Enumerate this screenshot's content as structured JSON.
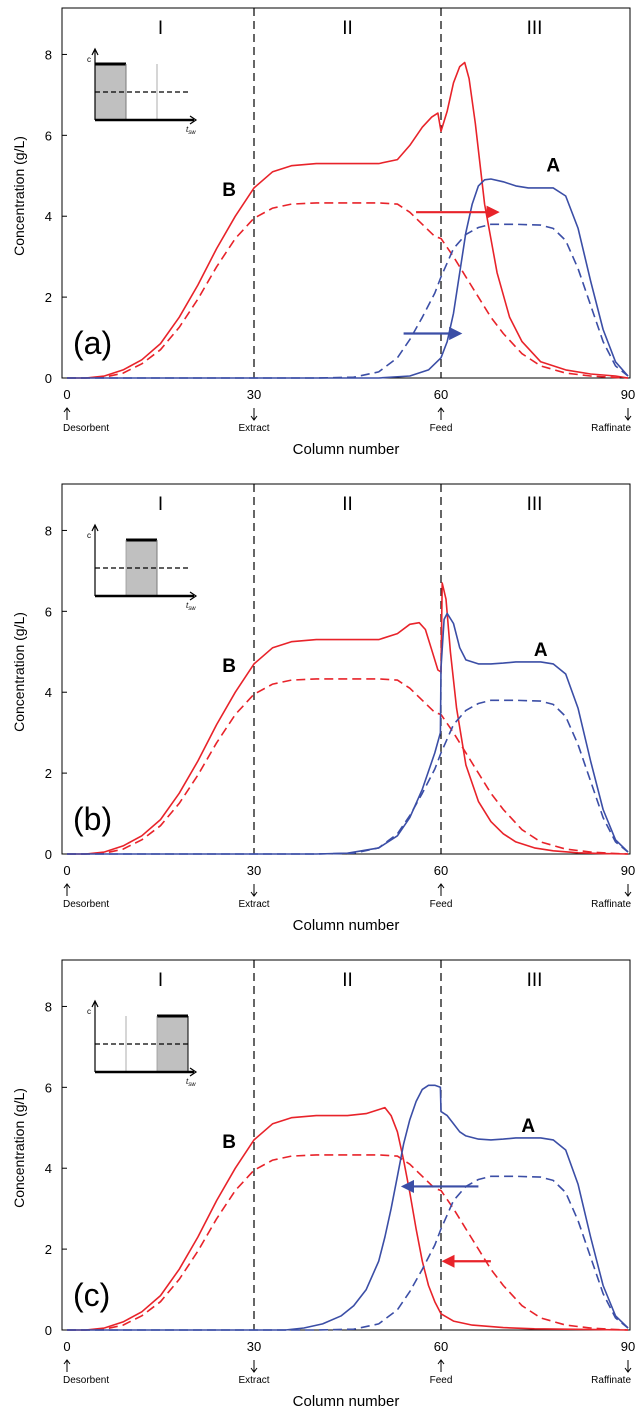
{
  "figure": {
    "x_axis_label": "Column number",
    "y_axis_label": "Concentration (g/L)",
    "position_labels": [
      "Desorbent",
      "Extract",
      "Feed",
      "Raffinate"
    ],
    "zone_labels": [
      "I",
      "II",
      "III"
    ],
    "inset_axis_labels": {
      "y": "c",
      "x": "t",
      "x_subscript": "sw"
    },
    "colors": {
      "species_B": "#e8232a",
      "species_A": "#3b4ea6",
      "zone_line": "#000000"
    }
  },
  "chart_data": [
    {
      "type": "line",
      "panel_label": "(a)",
      "xlim": [
        0,
        90
      ],
      "ylim": [
        0,
        9
      ],
      "x_ticks": [
        0,
        30,
        60,
        90
      ],
      "y_ticks": [
        0,
        2,
        4,
        6,
        8
      ],
      "zone_boundaries": [
        30,
        60
      ],
      "species_labels": [
        {
          "text": "B",
          "x": 26,
          "y": 4.5
        },
        {
          "text": "A",
          "x": 78,
          "y": 5.1
        }
      ],
      "arrows": [
        {
          "color": "#e8232a",
          "from": [
            56,
            4.1
          ],
          "to": [
            69,
            4.1
          ]
        },
        {
          "color": "#3b4ea6",
          "from": [
            54,
            1.1
          ],
          "to": [
            63,
            1.1
          ]
        }
      ],
      "inset_pulse_segment": 1,
      "series": [
        {
          "color": "#e8232a",
          "style": "solid",
          "x": [
            0,
            3,
            6,
            9,
            12,
            15,
            18,
            21,
            24,
            27,
            30,
            33,
            36,
            40,
            45,
            50,
            53,
            55,
            57,
            58.5,
            59.5,
            60,
            61,
            62,
            63,
            63.8,
            64.5,
            65.5,
            67,
            69,
            71,
            73,
            76,
            80,
            84,
            88,
            90
          ],
          "y": [
            0,
            0,
            0.05,
            0.2,
            0.45,
            0.85,
            1.5,
            2.3,
            3.2,
            4.0,
            4.7,
            5.1,
            5.25,
            5.3,
            5.3,
            5.3,
            5.4,
            5.75,
            6.2,
            6.45,
            6.55,
            6.1,
            6.6,
            7.3,
            7.7,
            7.8,
            7.4,
            6.3,
            4.3,
            2.6,
            1.5,
            0.9,
            0.4,
            0.2,
            0.1,
            0.05,
            0
          ]
        },
        {
          "color": "#e8232a",
          "style": "dashed",
          "x": [
            0,
            3,
            6,
            9,
            12,
            15,
            18,
            21,
            24,
            27,
            30,
            33,
            36,
            40,
            45,
            50,
            53,
            55,
            57,
            59,
            60,
            62,
            64,
            66,
            68,
            70,
            73,
            76,
            80,
            84,
            87,
            90
          ],
          "y": [
            0,
            0,
            0.02,
            0.12,
            0.35,
            0.7,
            1.25,
            1.95,
            2.75,
            3.45,
            3.95,
            4.2,
            4.3,
            4.33,
            4.33,
            4.33,
            4.3,
            4.1,
            3.8,
            3.5,
            3.45,
            3.0,
            2.5,
            2.0,
            1.5,
            1.1,
            0.6,
            0.3,
            0.12,
            0.05,
            0.02,
            0
          ]
        },
        {
          "color": "#3b4ea6",
          "style": "solid",
          "x": [
            0,
            40,
            50,
            55,
            58,
            60,
            61,
            62,
            63,
            64,
            65,
            66,
            67,
            68,
            70,
            72,
            74,
            76,
            78,
            80,
            82,
            84,
            86,
            88,
            90
          ],
          "y": [
            0,
            0,
            0,
            0.05,
            0.2,
            0.5,
            0.9,
            1.6,
            2.6,
            3.6,
            4.3,
            4.75,
            4.9,
            4.92,
            4.85,
            4.75,
            4.7,
            4.7,
            4.7,
            4.5,
            3.7,
            2.4,
            1.2,
            0.4,
            0.05
          ]
        },
        {
          "color": "#3b4ea6",
          "style": "dashed",
          "x": [
            0,
            40,
            46,
            50,
            53,
            55,
            57,
            59,
            60,
            62,
            64,
            66,
            68,
            72,
            76,
            78,
            80,
            82,
            84,
            86,
            88,
            90
          ],
          "y": [
            0,
            0,
            0.02,
            0.15,
            0.5,
            0.95,
            1.5,
            2.1,
            2.5,
            3.2,
            3.55,
            3.72,
            3.8,
            3.8,
            3.78,
            3.7,
            3.4,
            2.7,
            1.8,
            0.9,
            0.3,
            0.05
          ]
        }
      ]
    },
    {
      "type": "line",
      "panel_label": "(b)",
      "xlim": [
        0,
        90
      ],
      "ylim": [
        0,
        9
      ],
      "x_ticks": [
        0,
        30,
        60,
        90
      ],
      "y_ticks": [
        0,
        2,
        4,
        6,
        8
      ],
      "zone_boundaries": [
        30,
        60
      ],
      "species_labels": [
        {
          "text": "B",
          "x": 26,
          "y": 4.5
        },
        {
          "text": "A",
          "x": 76,
          "y": 4.9
        }
      ],
      "arrows": [],
      "inset_pulse_segment": 2,
      "series": [
        {
          "color": "#e8232a",
          "style": "solid",
          "x": [
            0,
            3,
            6,
            9,
            12,
            15,
            18,
            21,
            24,
            27,
            30,
            33,
            36,
            40,
            45,
            50,
            53,
            55,
            56.5,
            57.5,
            58.5,
            59.5,
            60,
            60.2,
            60.8,
            61.5,
            62.5,
            64,
            66,
            68,
            70,
            72,
            75,
            78,
            82,
            86,
            90
          ],
          "y": [
            0,
            0,
            0.05,
            0.2,
            0.45,
            0.85,
            1.5,
            2.3,
            3.2,
            4.0,
            4.7,
            5.1,
            5.25,
            5.3,
            5.3,
            5.3,
            5.45,
            5.68,
            5.72,
            5.55,
            5.05,
            4.55,
            4.5,
            6.7,
            6.3,
            5.0,
            3.6,
            2.2,
            1.3,
            0.8,
            0.5,
            0.3,
            0.15,
            0.08,
            0.03,
            0.01,
            0
          ]
        },
        {
          "color": "#e8232a",
          "style": "dashed",
          "x": [
            0,
            3,
            6,
            9,
            12,
            15,
            18,
            21,
            24,
            27,
            30,
            33,
            36,
            40,
            45,
            50,
            53,
            55,
            57,
            59,
            60,
            62,
            64,
            66,
            68,
            70,
            73,
            76,
            80,
            84,
            87,
            90
          ],
          "y": [
            0,
            0,
            0.02,
            0.12,
            0.35,
            0.7,
            1.25,
            1.95,
            2.75,
            3.45,
            3.95,
            4.2,
            4.3,
            4.33,
            4.33,
            4.33,
            4.3,
            4.1,
            3.8,
            3.5,
            3.45,
            3.0,
            2.5,
            2.0,
            1.5,
            1.1,
            0.6,
            0.3,
            0.12,
            0.05,
            0.02,
            0
          ]
        },
        {
          "color": "#3b4ea6",
          "style": "solid",
          "x": [
            0,
            40,
            45,
            50,
            53,
            55,
            57,
            59,
            59.9,
            60,
            60.5,
            61,
            62,
            63,
            64,
            66,
            68,
            70,
            72,
            74,
            76,
            78,
            80,
            82,
            84,
            86,
            88,
            90
          ],
          "y": [
            0,
            0,
            0.02,
            0.15,
            0.45,
            0.9,
            1.6,
            2.5,
            3.0,
            4.6,
            5.8,
            5.95,
            5.7,
            5.1,
            4.8,
            4.7,
            4.7,
            4.72,
            4.75,
            4.75,
            4.75,
            4.7,
            4.45,
            3.6,
            2.3,
            1.1,
            0.35,
            0.05
          ]
        },
        {
          "color": "#3b4ea6",
          "style": "dashed",
          "x": [
            0,
            40,
            46,
            50,
            53,
            55,
            57,
            59,
            60,
            62,
            64,
            66,
            68,
            72,
            76,
            78,
            80,
            82,
            84,
            86,
            88,
            90
          ],
          "y": [
            0,
            0,
            0.02,
            0.15,
            0.5,
            0.95,
            1.5,
            2.1,
            2.5,
            3.2,
            3.55,
            3.72,
            3.8,
            3.8,
            3.78,
            3.7,
            3.4,
            2.7,
            1.8,
            0.9,
            0.3,
            0.05
          ]
        }
      ]
    },
    {
      "type": "line",
      "panel_label": "(c)",
      "xlim": [
        0,
        90
      ],
      "ylim": [
        0,
        9
      ],
      "x_ticks": [
        0,
        30,
        60,
        90
      ],
      "y_ticks": [
        0,
        2,
        4,
        6,
        8
      ],
      "zone_boundaries": [
        30,
        60
      ],
      "species_labels": [
        {
          "text": "B",
          "x": 26,
          "y": 4.5
        },
        {
          "text": "A",
          "x": 74,
          "y": 4.9
        }
      ],
      "arrows": [
        {
          "color": "#3b4ea6",
          "from": [
            66,
            3.55
          ],
          "to": [
            54,
            3.55
          ]
        },
        {
          "color": "#e8232a",
          "from": [
            68,
            1.7
          ],
          "to": [
            60.5,
            1.7
          ]
        }
      ],
      "inset_pulse_segment": 3,
      "series": [
        {
          "color": "#e8232a",
          "style": "solid",
          "x": [
            0,
            3,
            6,
            9,
            12,
            15,
            18,
            21,
            24,
            27,
            30,
            33,
            36,
            40,
            45,
            48,
            50,
            51,
            52,
            53,
            54,
            55,
            56,
            57,
            58,
            59,
            60,
            62,
            65,
            70,
            75,
            80,
            85,
            90
          ],
          "y": [
            0,
            0,
            0.05,
            0.2,
            0.45,
            0.85,
            1.5,
            2.3,
            3.2,
            4.0,
            4.7,
            5.1,
            5.25,
            5.3,
            5.3,
            5.35,
            5.45,
            5.5,
            5.3,
            4.9,
            4.2,
            3.4,
            2.5,
            1.7,
            1.1,
            0.7,
            0.4,
            0.22,
            0.12,
            0.06,
            0.03,
            0.02,
            0.01,
            0
          ]
        },
        {
          "color": "#e8232a",
          "style": "dashed",
          "x": [
            0,
            3,
            6,
            9,
            12,
            15,
            18,
            21,
            24,
            27,
            30,
            33,
            36,
            40,
            45,
            50,
            53,
            55,
            57,
            59,
            60,
            62,
            64,
            66,
            68,
            70,
            73,
            76,
            80,
            84,
            87,
            90
          ],
          "y": [
            0,
            0,
            0.02,
            0.12,
            0.35,
            0.7,
            1.25,
            1.95,
            2.75,
            3.45,
            3.95,
            4.2,
            4.3,
            4.33,
            4.33,
            4.33,
            4.3,
            4.1,
            3.8,
            3.5,
            3.45,
            3.0,
            2.5,
            2.0,
            1.5,
            1.1,
            0.6,
            0.3,
            0.12,
            0.05,
            0.02,
            0
          ]
        },
        {
          "color": "#3b4ea6",
          "style": "solid",
          "x": [
            0,
            35,
            38,
            41,
            44,
            46,
            48,
            50,
            51,
            52,
            53,
            54,
            55,
            56,
            57,
            58,
            59,
            59.9,
            60,
            61,
            62,
            63,
            64,
            66,
            68,
            70,
            72,
            74,
            76,
            78,
            80,
            82,
            84,
            86,
            88,
            90
          ],
          "y": [
            0,
            0,
            0.05,
            0.15,
            0.35,
            0.6,
            1.0,
            1.7,
            2.3,
            3.0,
            3.8,
            4.6,
            5.2,
            5.65,
            5.95,
            6.05,
            6.05,
            6.0,
            5.4,
            5.3,
            5.1,
            4.9,
            4.8,
            4.72,
            4.7,
            4.72,
            4.75,
            4.75,
            4.75,
            4.7,
            4.45,
            3.6,
            2.3,
            1.1,
            0.35,
            0.05
          ]
        },
        {
          "color": "#3b4ea6",
          "style": "dashed",
          "x": [
            0,
            40,
            46,
            50,
            53,
            55,
            57,
            59,
            60,
            62,
            64,
            66,
            68,
            72,
            76,
            78,
            80,
            82,
            84,
            86,
            88,
            90
          ],
          "y": [
            0,
            0,
            0.02,
            0.15,
            0.5,
            0.95,
            1.5,
            2.1,
            2.5,
            3.2,
            3.55,
            3.72,
            3.8,
            3.8,
            3.78,
            3.7,
            3.4,
            2.7,
            1.8,
            0.9,
            0.3,
            0.05
          ]
        }
      ]
    }
  ]
}
